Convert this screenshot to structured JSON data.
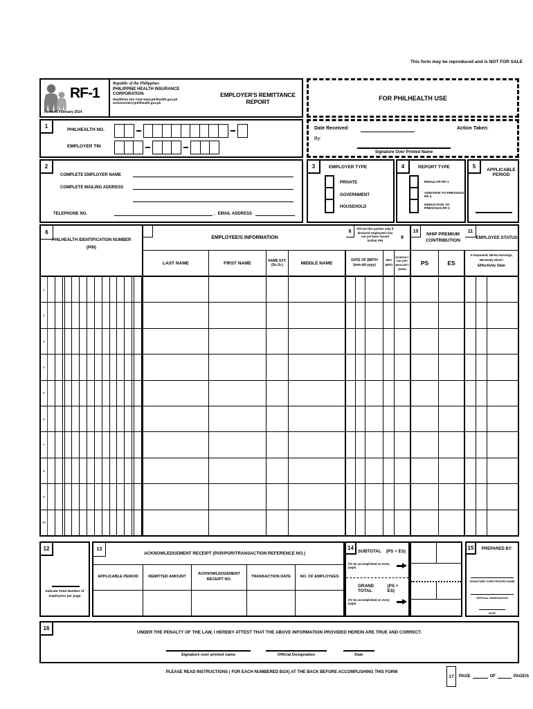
{
  "page": {
    "top_note": "This form may be reproduced and is NOT FOR SALE"
  },
  "header": {
    "form_code": "RF-1",
    "revised": "Revised  February 2014",
    "republic": "Republic of the Philippines",
    "corporation": "PHILIPPINE HEALTH INSURANCE CORPORATION",
    "healthline": "Healthline 441-7444 www.philhealth.gov.ph",
    "email": "actioncenter@philhealth.gov.ph",
    "title": "EMPLOYER'S REMITTANCE REPORT",
    "for_philhealth_use": "FOR PHILHEALTH USE"
  },
  "box1": {
    "number": "1",
    "philhealth_no_label": "PHILHEALTH NO.",
    "employer_tin_label": "EMPLOYER TIN",
    "date_received_label": "Date  Received:",
    "by_label": "By:",
    "signature_label": "Signature Over Printed Name",
    "action_taken_label": "Action Taken:"
  },
  "box2": {
    "number": "2",
    "employer_name_label": "COMPLETE EMPLOYER NAME",
    "mailing_address_label": "COMPLETE  MAILING ADDRESS",
    "telephone_label": "TELEPHONE NO.",
    "comma": ",",
    "email_label": "EMAIL ADDRESS"
  },
  "box3": {
    "number": "3",
    "title": "EMPLOYER TYPE",
    "options": [
      "PRIVATE",
      "GOVERNMENT",
      "HOUSEHOLD"
    ]
  },
  "box4": {
    "number": "4",
    "title": "REPORT TYPE",
    "options": [
      "REGULAR RF-1",
      "ADDITION TO PREVIOUS RF-1",
      "DEDUCTION TO PREVIOUS RF-1"
    ]
  },
  "box5": {
    "number": "5",
    "title": "APPLICABLE PERIOD"
  },
  "table": {
    "box6": {
      "number": "6",
      "label_line1": "PHILHEALTH  IDENTIFICATION NUMBER",
      "label_line2": "(PIN)"
    },
    "box7": {
      "number": "7",
      "title": "EMPLOYEE/S INFORMATION",
      "col_last": "LAST NAME",
      "col_first": "FIRST NAME",
      "col_ext1": "NAME EXT.",
      "col_ext2": "(Sr./Jr.)",
      "col_middle": "MIDDLE NAME"
    },
    "box8": {
      "number": "8",
      "note": "Fill-out this portion only if declared employee/s has not yet been issued his/her PIN",
      "dob1": "DATE OF BIRTH",
      "dob2": "(mm-dd-yyyy)",
      "sex1": "SEX",
      "sex2": "(M/F)"
    },
    "box9": {
      "number": "9",
      "msb": "MONTHLY SALARY BRACKET (MSB)"
    },
    "box10": {
      "number": "10",
      "title": "NHIP PREMIUM CONTRIBUTION",
      "ps": "PS",
      "es": "ES"
    },
    "box11": {
      "number": "11",
      "title": "EMPLOYEE STATUS",
      "note1": "S-Separated, NE-No Earnings,",
      "note2": "NH-Newly Hired /",
      "note3": "Effectivity Date"
    },
    "row_numbers": [
      "1",
      "2",
      "3",
      "4",
      "5",
      "6",
      "7",
      "8",
      "9",
      "10"
    ]
  },
  "box12": {
    "number": "12",
    "note1": "Indicate Total Number of",
    "note2": "employees per page"
  },
  "box13": {
    "number": "13",
    "title": "ACKNOWLEDGEMENT RECEIPT (PAR/POR/TRANSACTION REFERENCE NO.)",
    "columns": [
      "APPLICABLE PERIOD",
      "REMITTED AMOUNT",
      "ACKNOWLEDGEMENT RECEIPT  NO.",
      "TRANSACTION DATE",
      "NO. OF EMPLOYEES"
    ]
  },
  "box14": {
    "number": "14",
    "subtotal": "SUBTOTAL",
    "grand_total": "GRAND TOTAL",
    "ps_es": "(PS + ES)",
    "note": "(To be accomplished on every page)"
  },
  "box15": {
    "number": "15",
    "title": "PREPARED BY:",
    "line1": "SIGNATURE OVER PRINTED NAME",
    "line2": "OFFICIAL DESIGNATION",
    "line3": "DATE"
  },
  "box16": {
    "number": "16",
    "attestation": "UNDER THE PENALTY OF THE LAW, I HEREBY ATTEST THAT THE ABOVE INFORMATION PROVIDED HEREIN ARE TRUE AND CORRECT.",
    "sig1": "Signature over printed name",
    "sig2": "Official Designation",
    "sig3": "Date"
  },
  "footer": {
    "instructions": "PLEASE READ INSTRUCTIONS ( FOR EACH NUMBERED BOX) AT THE BACK BEFORE ACCOMPLISHING THIS FORM",
    "box17_number": "17",
    "page_label": "PAGE",
    "of_label": "OF",
    "pages_label": "PAGE/S"
  }
}
